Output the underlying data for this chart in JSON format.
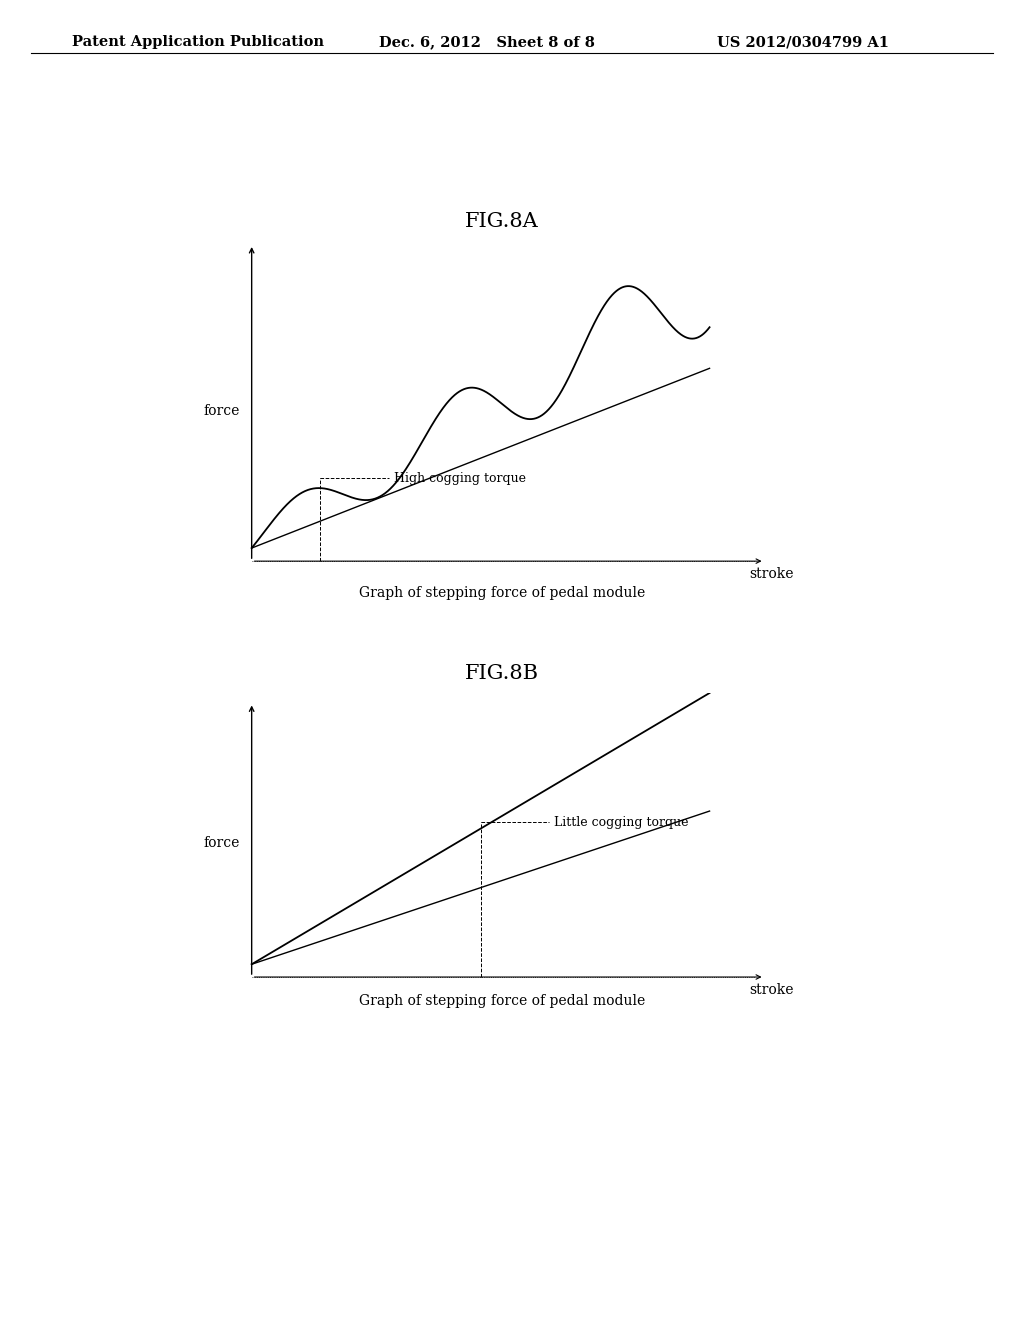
{
  "background_color": "#ffffff",
  "header_left": "Patent Application Publication",
  "header_mid": "Dec. 6, 2012   Sheet 8 of 8",
  "header_right": "US 2012/0304799 A1",
  "header_fontsize": 10.5,
  "fig8a_title": "FIG.8A",
  "fig8a_title_fontsize": 15,
  "fig8a_annotation": "High cogging torque",
  "fig8a_xlabel": "stroke",
  "fig8a_ylabel": "force",
  "fig8a_caption": "Graph of stepping force of pedal module",
  "fig8b_title": "FIG.8B",
  "fig8b_title_fontsize": 15,
  "fig8b_annotation": "Little cogging torque",
  "fig8b_xlabel": "stroke",
  "fig8b_ylabel": "force",
  "fig8b_caption": "Graph of stepping force of pedal module",
  "line_color": "#000000",
  "text_color": "#000000",
  "caption_fontsize": 10,
  "axis_label_fontsize": 10,
  "annotation_fontsize": 9
}
